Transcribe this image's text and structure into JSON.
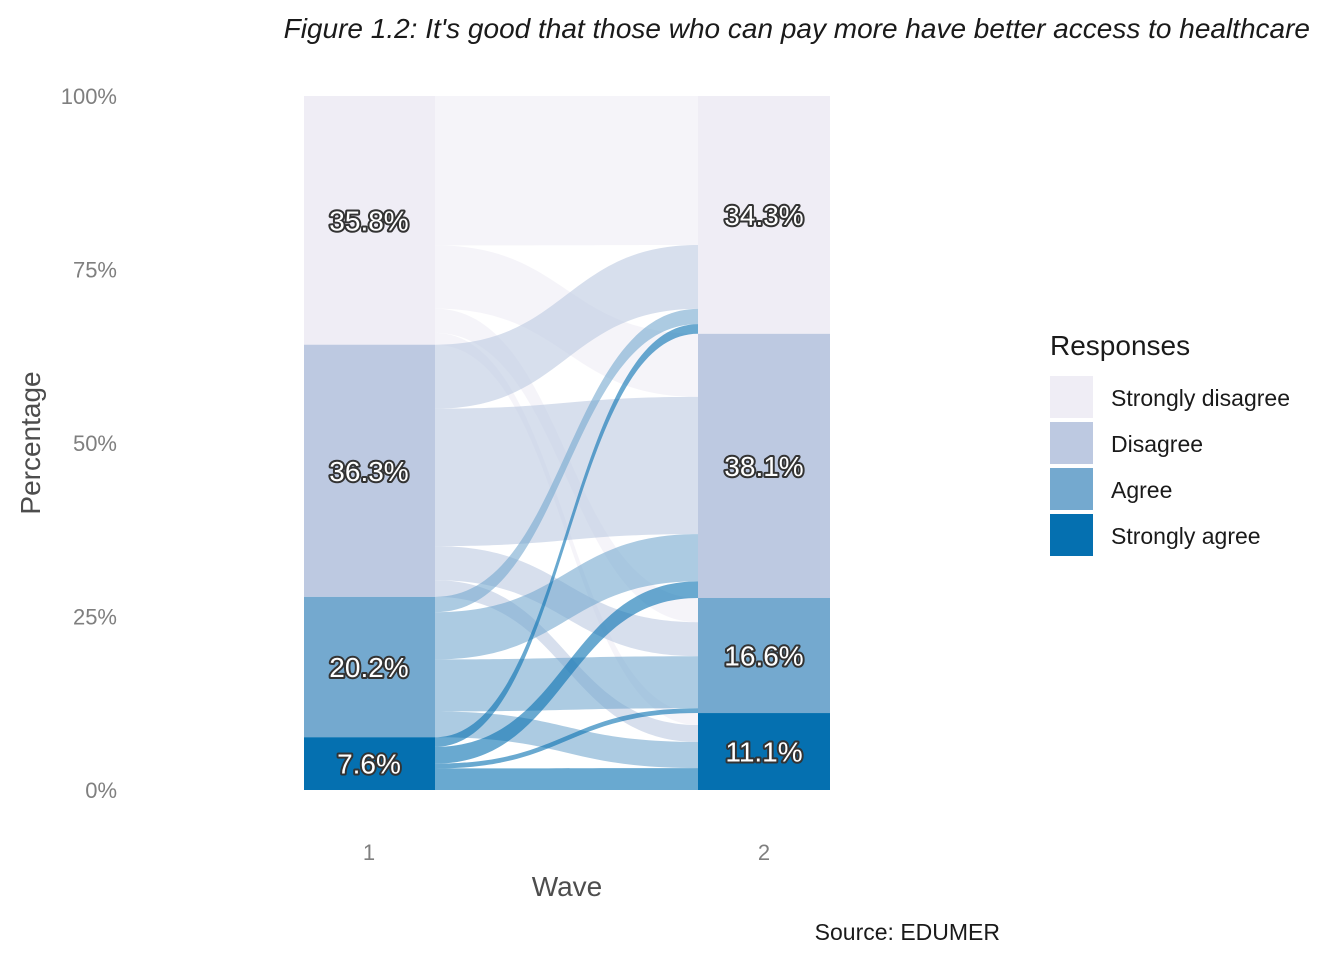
{
  "chart_data": {
    "type": "alluvial",
    "title": "Figure 1.2: It's good that those who can pay more have better access to healthcare",
    "xlabel": "Wave",
    "ylabel": "Percentage",
    "caption": "Source: EDUMER",
    "x": [
      "1",
      "2"
    ],
    "yticks": [
      "0%",
      "25%",
      "50%",
      "75%",
      "100%"
    ],
    "ylim": [
      0,
      100
    ],
    "grid": false,
    "legend": {
      "title": "Responses",
      "position": "right",
      "entries": [
        "Strongly disagree",
        "Disagree",
        "Agree",
        "Strongly agree"
      ]
    },
    "categories": [
      "Strongly disagree",
      "Disagree",
      "Agree",
      "Strongly agree"
    ],
    "colors": {
      "Strongly disagree": "#efedf5",
      "Disagree": "#bdc9e1",
      "Agree": "#74a9cf",
      "Strongly agree": "#0570b0"
    },
    "series": [
      {
        "name": "1",
        "values": [
          35.8,
          36.3,
          20.2,
          7.6
        ],
        "labels": [
          "35.8%",
          "36.3%",
          "20.2%",
          "7.6%"
        ]
      },
      {
        "name": "2",
        "values": [
          34.3,
          38.1,
          16.6,
          11.1
        ],
        "labels": [
          "34.3%",
          "38.1%",
          "16.6%",
          "11.1%"
        ]
      }
    ],
    "flows": [
      {
        "from": "Strongly disagree",
        "to": "Strongly disagree",
        "value": 21.5
      },
      {
        "from": "Strongly disagree",
        "to": "Disagree",
        "value": 9.1
      },
      {
        "from": "Strongly disagree",
        "to": "Agree",
        "value": 3.5
      },
      {
        "from": "Strongly disagree",
        "to": "Strongly agree",
        "value": 1.7
      },
      {
        "from": "Disagree",
        "to": "Strongly disagree",
        "value": 9.2
      },
      {
        "from": "Disagree",
        "to": "Disagree",
        "value": 19.8
      },
      {
        "from": "Disagree",
        "to": "Agree",
        "value": 4.9
      },
      {
        "from": "Disagree",
        "to": "Strongly agree",
        "value": 2.4
      },
      {
        "from": "Agree",
        "to": "Strongly disagree",
        "value": 2.2
      },
      {
        "from": "Agree",
        "to": "Disagree",
        "value": 6.8
      },
      {
        "from": "Agree",
        "to": "Agree",
        "value": 7.5
      },
      {
        "from": "Agree",
        "to": "Strongly agree",
        "value": 3.7
      },
      {
        "from": "Strongly agree",
        "to": "Strongly disagree",
        "value": 1.4
      },
      {
        "from": "Strongly agree",
        "to": "Disagree",
        "value": 2.4
      },
      {
        "from": "Strongly agree",
        "to": "Agree",
        "value": 0.7
      },
      {
        "from": "Strongly agree",
        "to": "Strongly agree",
        "value": 3.1
      }
    ]
  }
}
